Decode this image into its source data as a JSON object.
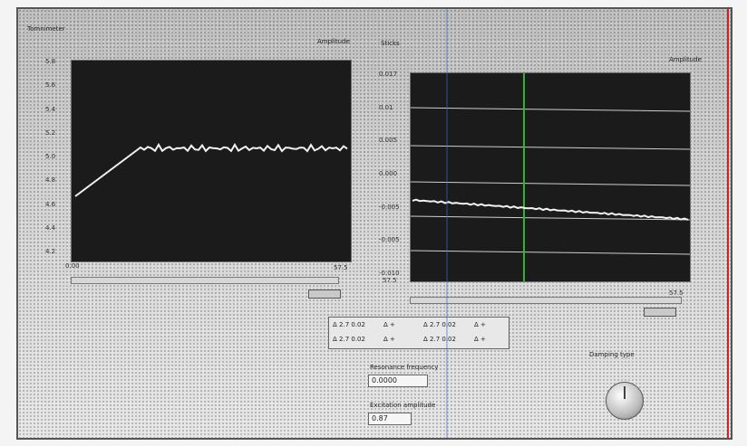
{
  "left_panel": {
    "title": "Tomnimeter",
    "corner": "Amplitude",
    "y_ticks": [
      "5.8",
      "5.6",
      "5.4",
      "5.2",
      "5.0",
      "4.8",
      "4.6",
      "4.4",
      "4.2"
    ],
    "x_ticks": [
      "0.00",
      "57.5"
    ],
    "line_color": "#f2f2f2"
  },
  "right_panel": {
    "title": "Sticks",
    "corner": "Amplitude",
    "y_ticks": [
      "0.017",
      "0.01",
      "0.005",
      "0.000",
      "-0.005",
      "-0.005",
      "-0.010"
    ],
    "x_ticks": [
      "57.5",
      "57.5"
    ],
    "cursor_color": "#2db62d",
    "line_color": "#f2f2f2"
  },
  "cursor_table": {
    "rows": [
      [
        "Δ 2.7 0.02",
        "Δ +",
        "Δ 2.7 0.02",
        "Δ +"
      ],
      [
        "Δ 2.7 0.02",
        "Δ +",
        "Δ 2.7 0.02",
        "Δ +"
      ]
    ]
  },
  "fields": {
    "frequency_label": "Resonance frequency",
    "frequency_value": "0.0000",
    "amplitude_label": "Excitation amplitude",
    "amplitude_value": "0.87"
  },
  "knob": {
    "label": "Damping type"
  },
  "colors": {
    "plot_bg": "#1b1b1b",
    "edge_red": "#d42020",
    "edge_blue": "#3a6bd8"
  }
}
